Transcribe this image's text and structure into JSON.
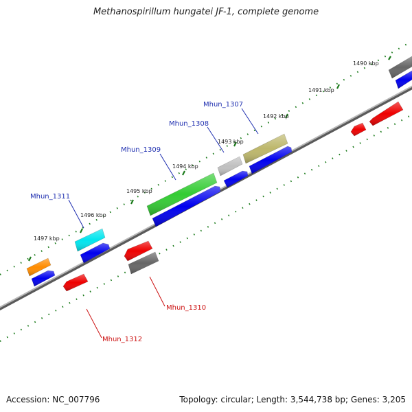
{
  "title": "Methanospirillum hungatei JF-1, complete genome",
  "footer": {
    "accession": "Accession: NC_007796",
    "topology": "Topology: circular; Length: 3,544,738 bp; Genes: 3,205"
  },
  "colors": {
    "backbone": "#8a8a8a",
    "tick": "#1a7a1a",
    "tick_label": "#222222",
    "forward_label": "#1f2fb0",
    "reverse_label": "#cc1111"
  },
  "ticks": [
    {
      "label": "1490 kbp"
    },
    {
      "label": "1491 kbp"
    },
    {
      "label": "1492 kbp"
    },
    {
      "label": "1493 kbp"
    },
    {
      "label": "1494 kbp"
    },
    {
      "label": "1495 kbp"
    },
    {
      "label": "1496 kbp"
    },
    {
      "label": "1497 kbp"
    }
  ],
  "gene_labels": [
    {
      "label": "Mhun_1307",
      "strand": "forward"
    },
    {
      "label": "Mhun_1308",
      "strand": "forward"
    },
    {
      "label": "Mhun_1309",
      "strand": "forward"
    },
    {
      "label": "Mhun_1311",
      "strand": "forward"
    },
    {
      "label": "Mhun_1310",
      "strand": "reverse"
    },
    {
      "label": "Mhun_1312",
      "strand": "reverse"
    }
  ],
  "features": [
    {
      "kind": "gene",
      "color": "#ff8c00"
    },
    {
      "kind": "gene",
      "color": "#00e5ee"
    },
    {
      "kind": "gene",
      "color": "#33cc33"
    },
    {
      "kind": "gene",
      "color": "#c0c0c0"
    },
    {
      "kind": "gene",
      "color": "#bdb76b"
    },
    {
      "kind": "gene",
      "color": "#666666"
    },
    {
      "kind": "cds",
      "color": "#0000ee"
    },
    {
      "kind": "cds",
      "color": "#0000ee"
    },
    {
      "kind": "cds",
      "color": "#0000ee"
    },
    {
      "kind": "cds",
      "color": "#0000ee"
    },
    {
      "kind": "cds",
      "color": "#0000ee"
    },
    {
      "kind": "cds",
      "color": "#0000ee"
    },
    {
      "kind": "reverse-gene",
      "color": "#ee0000"
    },
    {
      "kind": "reverse-gene",
      "color": "#666666"
    },
    {
      "kind": "reverse-cds",
      "color": "#ee0000"
    },
    {
      "kind": "reverse-cds",
      "color": "#ee0000"
    },
    {
      "kind": "reverse-cds",
      "color": "#ee0000"
    },
    {
      "kind": "reverse-cds",
      "color": "#ee0000"
    }
  ]
}
